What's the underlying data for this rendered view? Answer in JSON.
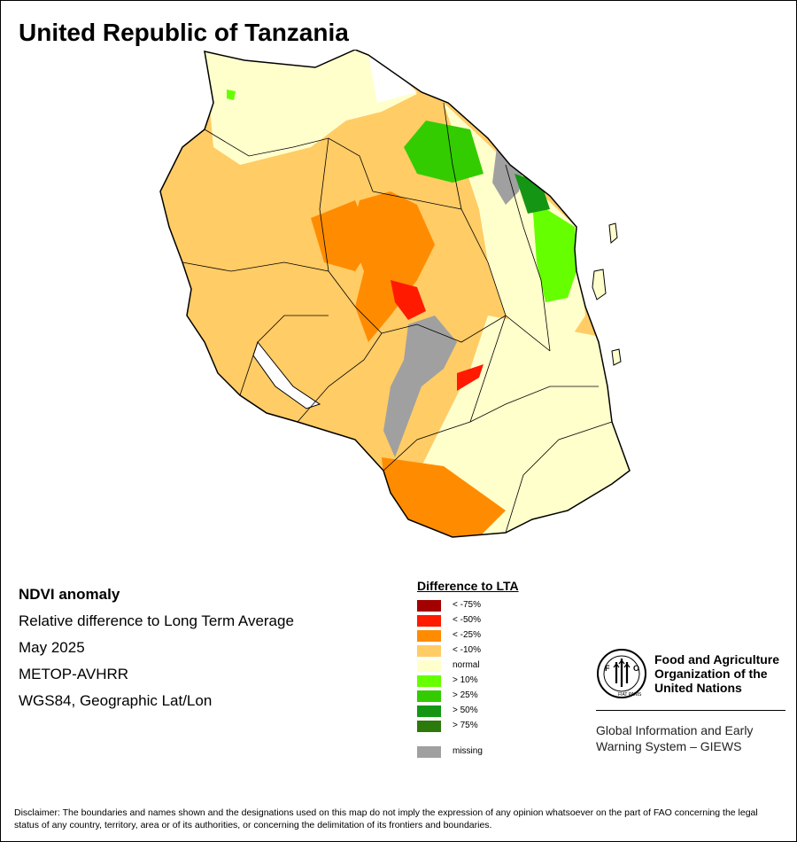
{
  "title": "United Republic of Tanzania",
  "info": {
    "product": "NDVI anomaly",
    "description": "Relative difference to Long Term Average",
    "period": "May 2025",
    "sensor": "METOP-AVHRR",
    "projection": "WGS84, Geographic Lat/Lon"
  },
  "legend": {
    "title": "Difference to LTA",
    "items": [
      {
        "label": "< -75%",
        "color": "#a30000"
      },
      {
        "label": "< -50%",
        "color": "#ff1a00"
      },
      {
        "label": "< -25%",
        "color": "#ff8c00"
      },
      {
        "label": "< -10%",
        "color": "#ffcc66"
      },
      {
        "label": "normal",
        "color": "#ffffcc"
      },
      {
        "label": "> 10%",
        "color": "#66ff00"
      },
      {
        "label": "> 25%",
        "color": "#33cc00"
      },
      {
        "label": "> 50%",
        "color": "#149614"
      },
      {
        "label": "> 75%",
        "color": "#2b7a0b"
      }
    ],
    "missing": {
      "label": "missing",
      "color": "#a0a0a0"
    }
  },
  "fao": {
    "logo_text": "FAO",
    "logo_motto": "FIAT PANIS",
    "org_name": [
      "Food and Agriculture",
      "Organization of the",
      "United Nations"
    ],
    "program": [
      "Global Information and Early",
      "Warning System – GIEWS"
    ]
  },
  "disclaimer": "Disclaimer: The boundaries and names shown and the designations used on this map do not imply the expression of any opinion whatsoever on the part of FAO concerning the legal status of any country, territory, area or of its authorities, or concerning the delimitation of its frontiers and boundaries."
}
